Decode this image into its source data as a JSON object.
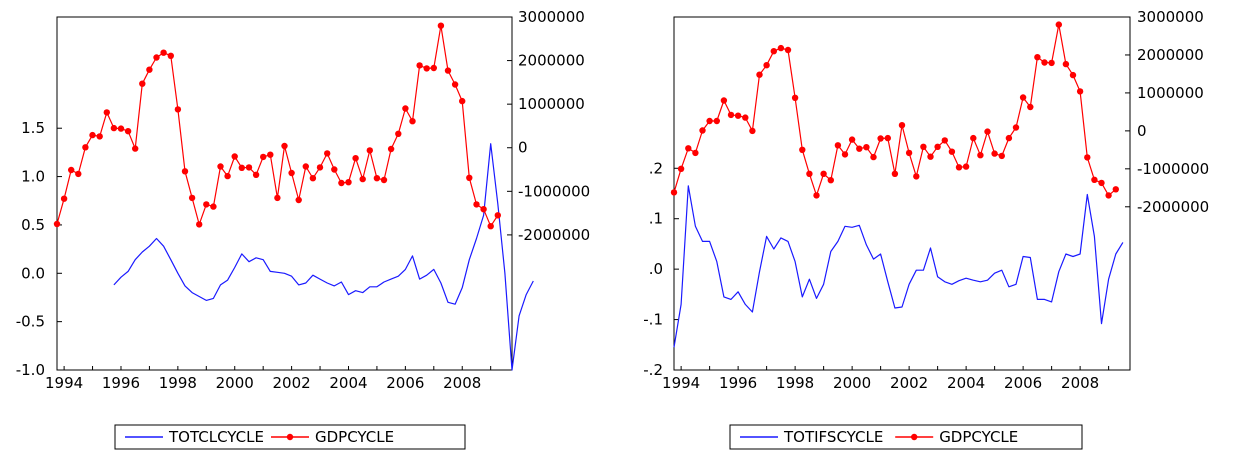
{
  "colors": {
    "blue": "#1a1aff",
    "red": "#ff0000",
    "axis": "#000000"
  },
  "chart_data": [
    {
      "type": "line",
      "title": "",
      "x_ticks": [
        "1994",
        "1996",
        "1998",
        "2000",
        "2002",
        "2004",
        "2006",
        "2008"
      ],
      "xlim": [
        1993.75,
        2009.75
      ],
      "left_axis": {
        "ticks": [
          "1.5",
          "1.0",
          "0.5",
          "0.0",
          "-0.5",
          "-1.0"
        ],
        "ylim": [
          -1.0,
          2.65
        ]
      },
      "right_axis": {
        "ticks": [
          "3000000",
          "2000000",
          "1000000",
          "0",
          "-1000000",
          "-2000000"
        ],
        "ylim": [
          -5100000,
          3000000
        ]
      },
      "legend": {
        "position": "bottom",
        "entries": [
          "TOTCLCYCLE",
          "GDPCYCLE"
        ]
      },
      "series": [
        {
          "name": "TOTCLCYCLE",
          "axis": "left",
          "color": "blue",
          "marker": "none",
          "x_start": 1995.75,
          "step": 0.25,
          "values": [
            -0.12,
            -0.04,
            0.02,
            0.14,
            0.22,
            0.28,
            0.36,
            0.28,
            0.14,
            0.0,
            -0.13,
            -0.2,
            -0.24,
            -0.28,
            -0.26,
            -0.12,
            -0.07,
            0.06,
            0.2,
            0.12,
            0.16,
            0.14,
            0.02,
            0.01,
            0.0,
            -0.03,
            -0.12,
            -0.1,
            -0.02,
            -0.06,
            -0.1,
            -0.13,
            -0.09,
            -0.22,
            -0.18,
            -0.2,
            -0.14,
            -0.14,
            -0.09,
            -0.06,
            -0.03,
            0.04,
            0.18,
            -0.06,
            -0.02,
            0.04,
            -0.1,
            -0.3,
            -0.32,
            -0.15,
            0.14,
            0.36,
            0.6,
            1.34,
            0.72,
            0.0,
            -1.0,
            -0.44,
            -0.22,
            -0.08
          ]
        },
        {
          "name": "GDPCYCLE",
          "axis": "right",
          "color": "red",
          "marker": "circle",
          "x_start": 1993.75,
          "step": 0.25,
          "values": [
            -1750000,
            -1170000,
            -510000,
            -600000,
            10000,
            290000,
            260000,
            810000,
            450000,
            440000,
            380000,
            -20000,
            1470000,
            1790000,
            2070000,
            2180000,
            2110000,
            880000,
            -540000,
            -1150000,
            -1760000,
            -1300000,
            -1350000,
            -430000,
            -650000,
            -200000,
            -460000,
            -450000,
            -620000,
            -210000,
            -160000,
            -1150000,
            40000,
            -580000,
            -1200000,
            -430000,
            -700000,
            -450000,
            -130000,
            -500000,
            -810000,
            -790000,
            -240000,
            -720000,
            -60000,
            -700000,
            -740000,
            -30000,
            320000,
            900000,
            610000,
            1890000,
            1820000,
            1830000,
            2800000,
            1770000,
            1450000,
            1070000,
            -690000,
            -1300000,
            -1410000,
            -1800000,
            -1550000
          ]
        }
      ]
    },
    {
      "type": "line",
      "title": "",
      "x_ticks": [
        "1994",
        "1996",
        "1998",
        "2000",
        "2002",
        "2004",
        "2006",
        "2008"
      ],
      "xlim": [
        1993.75,
        2009.75
      ],
      "left_axis": {
        "ticks": [
          ".2",
          ".1",
          ".0",
          "-.1",
          "-.2"
        ],
        "ylim": [
          -0.2,
          0.5
        ]
      },
      "right_axis": {
        "ticks": [
          "3000000",
          "2000000",
          "1000000",
          "0",
          "-1000000",
          "-2000000"
        ],
        "ylim": [
          -6300000,
          3000000
        ]
      },
      "legend": {
        "position": "bottom",
        "entries": [
          "TOTIFSCYCLE",
          "GDPCYCLE"
        ]
      },
      "series": [
        {
          "name": "TOTIFSCYCLE",
          "axis": "left",
          "color": "blue",
          "marker": "none",
          "x_start": 1993.75,
          "step": 0.25,
          "values": [
            -0.155,
            -0.07,
            0.165,
            0.085,
            0.055,
            0.055,
            0.015,
            -0.055,
            -0.06,
            -0.045,
            -0.07,
            -0.085,
            -0.005,
            0.065,
            0.04,
            0.062,
            0.055,
            0.015,
            -0.055,
            -0.02,
            -0.058,
            -0.03,
            0.035,
            0.055,
            0.085,
            0.083,
            0.087,
            0.048,
            0.02,
            0.03,
            -0.025,
            -0.077,
            -0.075,
            -0.03,
            -0.002,
            -0.002,
            0.042,
            -0.015,
            -0.025,
            -0.03,
            -0.023,
            -0.018,
            -0.022,
            -0.025,
            -0.022,
            -0.008,
            -0.002,
            -0.035,
            -0.03,
            0.025,
            0.023,
            -0.06,
            -0.06,
            -0.065,
            -0.005,
            0.03,
            0.025,
            0.03,
            0.148,
            0.065,
            -0.108,
            -0.02,
            0.03,
            0.053
          ]
        },
        {
          "name": "GDPCYCLE",
          "axis": "right",
          "color": "red",
          "marker": "circle",
          "x_start": 1993.75,
          "step": 0.25,
          "values": [
            -1620000,
            -1000000,
            -460000,
            -580000,
            10000,
            260000,
            260000,
            800000,
            420000,
            400000,
            350000,
            0,
            1480000,
            1730000,
            2100000,
            2180000,
            2130000,
            870000,
            -500000,
            -1130000,
            -1700000,
            -1130000,
            -1300000,
            -380000,
            -620000,
            -230000,
            -470000,
            -430000,
            -690000,
            -200000,
            -190000,
            -1130000,
            150000,
            -580000,
            -1200000,
            -420000,
            -680000,
            -420000,
            -250000,
            -550000,
            -960000,
            -940000,
            -190000,
            -640000,
            -20000,
            -600000,
            -660000,
            -190000,
            90000,
            880000,
            630000,
            1940000,
            1800000,
            1790000,
            2800000,
            1760000,
            1470000,
            1040000,
            -700000,
            -1290000,
            -1370000,
            -1700000,
            -1540000
          ]
        }
      ]
    }
  ]
}
